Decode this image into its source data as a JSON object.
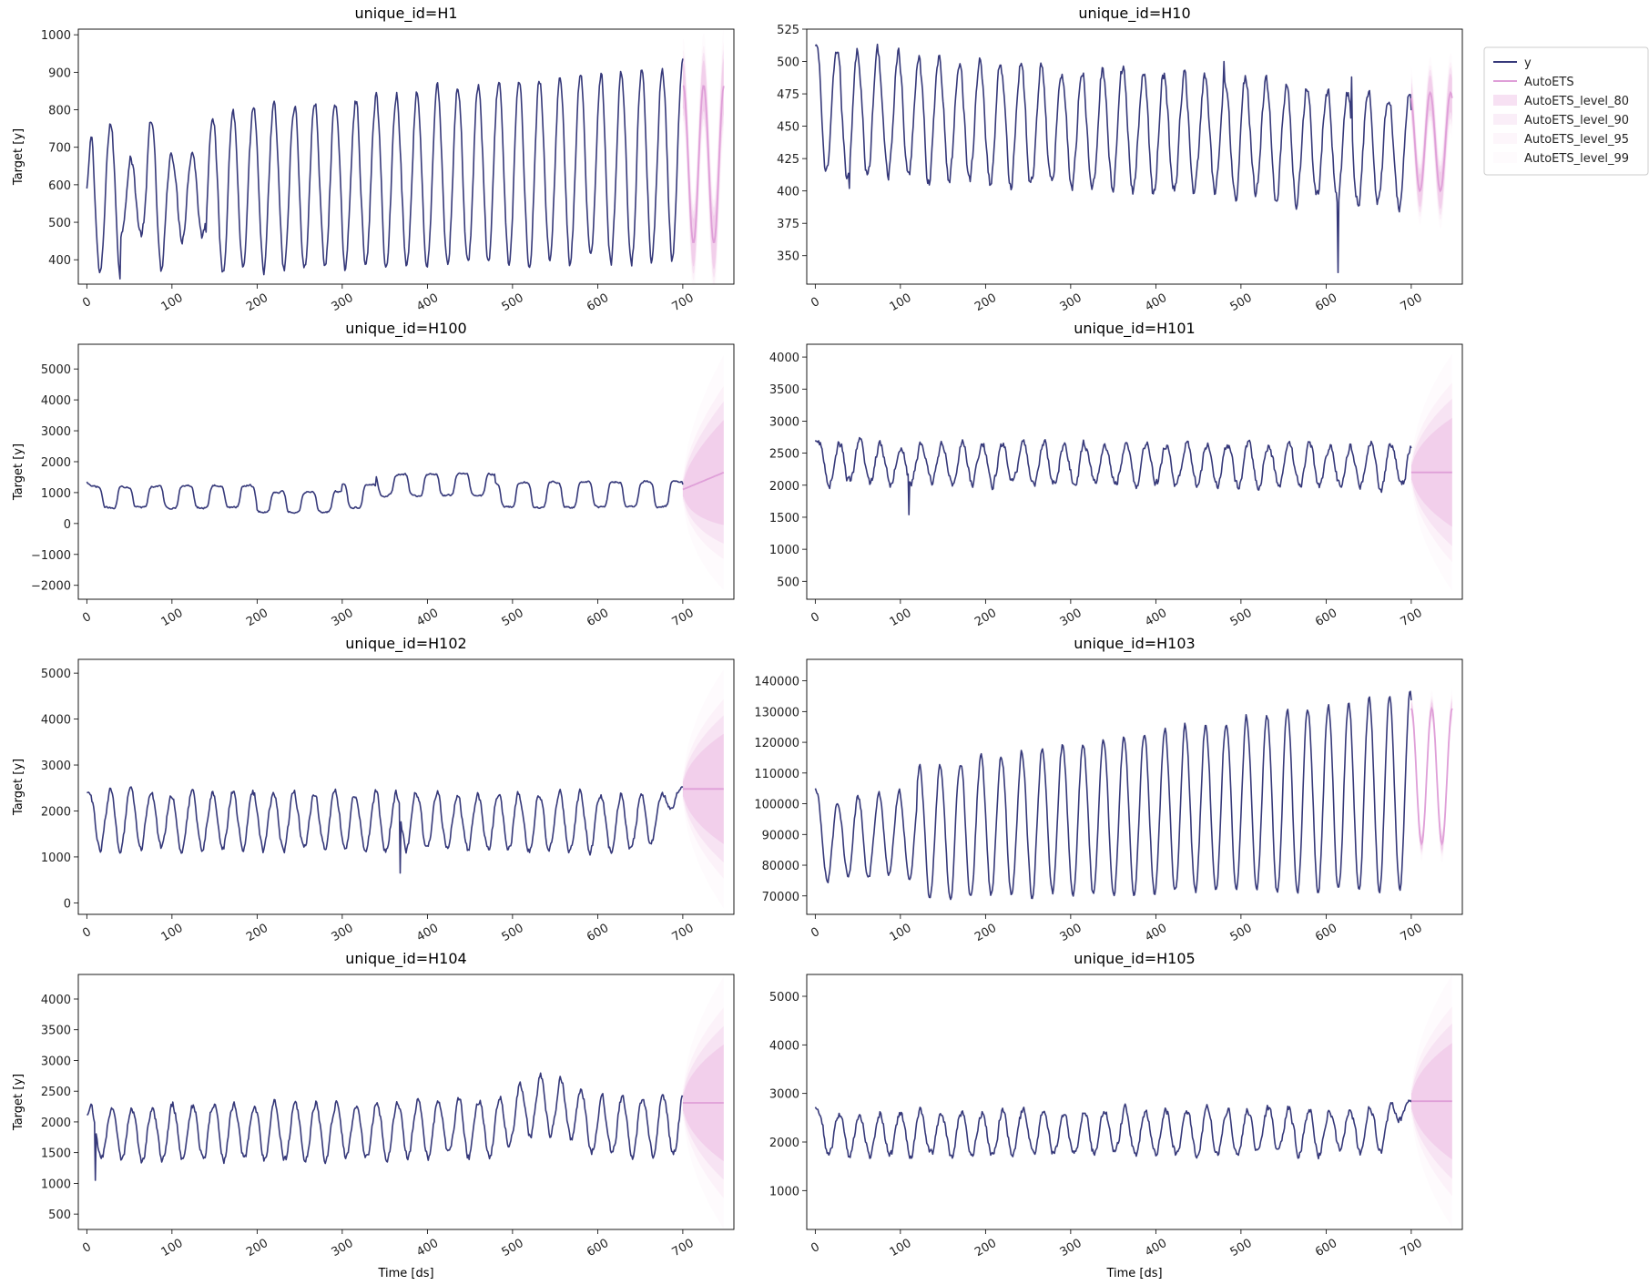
{
  "style": {
    "history_color": "#36397a",
    "forecast_color": "#df9fd8",
    "band_color": "#e7a8dc"
  },
  "legend": {
    "entries": [
      "y",
      "AutoETS",
      "AutoETS_level_80",
      "AutoETS_level_90",
      "AutoETS_level_95",
      "AutoETS_level_99"
    ]
  },
  "chart_data": [
    {
      "type": "line",
      "title": "unique_id=H1",
      "xlabel": "",
      "ylabel": "Target [y]",
      "xlim": [
        -10,
        760
      ],
      "ylim": [
        335,
        1015
      ],
      "xticks": [
        "0",
        "100",
        "200",
        "300",
        "400",
        "500",
        "600",
        "700"
      ],
      "yticks": [
        "400",
        "500",
        "600",
        "700",
        "800",
        "900",
        "1000"
      ],
      "history": {
        "pattern": "cycle",
        "start": 590,
        "base0": 560,
        "base1": 660,
        "amp0": 200,
        "amp1": 260,
        "period": 24,
        "noise": 18,
        "phase": 0.6,
        "disturb": [
          [
            40,
            70,
            0.5
          ],
          [
            95,
            140,
            0.55
          ]
        ]
      },
      "forecast": {
        "type": "seasonal",
        "mean": 655,
        "amp": 210,
        "period": 24,
        "phase": 0.4,
        "bands": [
          75,
          98,
          118,
          155
        ],
        "grow": 0.2
      }
    },
    {
      "type": "line",
      "title": "unique_id=H10",
      "xlabel": "",
      "ylabel": "",
      "xlim": [
        -10,
        760
      ],
      "ylim": [
        328,
        525
      ],
      "xticks": [
        "0",
        "100",
        "200",
        "300",
        "400",
        "500",
        "600",
        "700"
      ],
      "yticks": [
        "350",
        "375",
        "400",
        "425",
        "450",
        "475",
        "500",
        "525"
      ],
      "history": {
        "pattern": "cycle",
        "start": 512,
        "base0": 462,
        "base1": 432,
        "amp0": 50,
        "amp1": 42,
        "period": 24,
        "noise": 7,
        "phase": 1.2,
        "spikes": [
          [
            614,
            337
          ],
          [
            480,
            500
          ],
          [
            40,
            402
          ],
          [
            630,
            488
          ]
        ]
      },
      "forecast": {
        "type": "seasonal",
        "mean": 438,
        "amp": 38,
        "period": 24,
        "phase": 1.0,
        "bands": [
          15,
          20,
          24,
          31
        ],
        "grow": 0.2
      }
    },
    {
      "type": "line",
      "title": "unique_id=H100",
      "xlabel": "",
      "ylabel": "Target [y]",
      "xlim": [
        -10,
        760
      ],
      "ylim": [
        -2450,
        5800
      ],
      "xticks": [
        "0",
        "100",
        "200",
        "300",
        "400",
        "500",
        "600",
        "700"
      ],
      "yticks": [
        "−2000",
        "−1000",
        "0",
        "1000",
        "2000",
        "3000",
        "4000",
        "5000"
      ],
      "history": {
        "pattern": "square",
        "start": 1350,
        "base0": 850,
        "base1": 950,
        "amp0": 340,
        "amp1": 420,
        "period": 36,
        "noise": 40,
        "phase": 0.0,
        "seg": [
          [
            200,
            300,
            700
          ],
          [
            340,
            480,
            1250
          ]
        ]
      },
      "forecast": {
        "type": "linear",
        "start": 1100,
        "end": 1650,
        "bands": [
          1700,
          2300,
          2800,
          3800
        ],
        "grow": 1.0
      }
    },
    {
      "type": "line",
      "title": "unique_id=H101",
      "xlabel": "",
      "ylabel": "",
      "xlim": [
        -10,
        760
      ],
      "ylim": [
        220,
        4200
      ],
      "xticks": [
        "0",
        "100",
        "200",
        "300",
        "400",
        "500",
        "600",
        "700"
      ],
      "yticks": [
        "500",
        "1000",
        "1500",
        "2000",
        "2500",
        "3000",
        "3500",
        "4000"
      ],
      "history": {
        "pattern": "cycle",
        "start": 2700,
        "base0": 2350,
        "base1": 2300,
        "amp0": 300,
        "amp1": 330,
        "period": 24,
        "noise": 90,
        "phase": 0.4,
        "spikes": [
          [
            110,
            1540
          ]
        ]
      },
      "forecast": {
        "type": "flat",
        "value": 2200,
        "bands": [
          850,
          1150,
          1400,
          1850
        ],
        "grow": 1.0
      }
    },
    {
      "type": "line",
      "title": "unique_id=H102",
      "xlabel": "",
      "ylabel": "Target [y]",
      "xlim": [
        -10,
        760
      ],
      "ylim": [
        -250,
        5300
      ],
      "xticks": [
        "0",
        "100",
        "200",
        "300",
        "400",
        "500",
        "600",
        "700"
      ],
      "yticks": [
        "0",
        "1000",
        "2000",
        "3000",
        "4000",
        "5000"
      ],
      "history": {
        "pattern": "cycle",
        "start": 2400,
        "base0": 1800,
        "base1": 1750,
        "amp0": 620,
        "amp1": 620,
        "period": 24,
        "noise": 110,
        "phase": 0.7,
        "spikes": [
          [
            368,
            650
          ]
        ],
        "endrise": [
          660,
          700,
          2500
        ]
      },
      "forecast": {
        "type": "flat",
        "value": 2480,
        "bands": [
          1200,
          1600,
          1950,
          2600
        ],
        "grow": 1.0
      }
    },
    {
      "type": "line",
      "title": "unique_id=H103",
      "xlabel": "",
      "ylabel": "",
      "xlim": [
        -10,
        760
      ],
      "ylim": [
        64000,
        147000
      ],
      "xticks": [
        "0",
        "100",
        "200",
        "300",
        "400",
        "500",
        "600",
        "700"
      ],
      "yticks": [
        "70000",
        "80000",
        "90000",
        "100000",
        "110000",
        "120000",
        "130000",
        "140000"
      ],
      "history": {
        "pattern": "cycle",
        "start": 105000,
        "base0": 88000,
        "base1": 104000,
        "amp0": 19000,
        "amp1": 32000,
        "period": 24,
        "noise": 1400,
        "phase": 0.9,
        "disturb": [
          [
            0,
            120,
            0.65
          ]
        ]
      },
      "forecast": {
        "type": "seasonal",
        "mean": 109000,
        "amp": 22000,
        "period": 24,
        "phase": 0.5,
        "bands": [
          2500,
          3500,
          4500,
          6500
        ],
        "grow": 0.2
      }
    },
    {
      "type": "line",
      "title": "unique_id=H104",
      "xlabel": "Time [ds]",
      "ylabel": "Target [y]",
      "xlim": [
        -10,
        760
      ],
      "ylim": [
        250,
        4400
      ],
      "xticks": [
        "0",
        "100",
        "200",
        "300",
        "400",
        "500",
        "600",
        "700"
      ],
      "yticks": [
        "500",
        "1000",
        "1500",
        "2000",
        "2500",
        "3000",
        "3500",
        "4000"
      ],
      "history": {
        "pattern": "cycle",
        "start": 2120,
        "base0": 1800,
        "base1": 1950,
        "amp0": 440,
        "amp1": 470,
        "period": 24,
        "noise": 85,
        "phase": 0.3,
        "spikes": [
          [
            10,
            1050
          ]
        ],
        "wave": [
          [
            480,
            600,
            350
          ]
        ]
      },
      "forecast": {
        "type": "flat",
        "value": 2310,
        "bands": [
          950,
          1250,
          1550,
          2050
        ],
        "grow": 1.0
      }
    },
    {
      "type": "line",
      "title": "unique_id=H105",
      "xlabel": "Time [ds]",
      "ylabel": "",
      "xlim": [
        -10,
        760
      ],
      "ylim": [
        200,
        5450
      ],
      "xticks": [
        "0",
        "100",
        "200",
        "300",
        "400",
        "500",
        "600",
        "700"
      ],
      "yticks": [
        "1000",
        "2000",
        "3000",
        "4000",
        "5000"
      ],
      "history": {
        "pattern": "cycle",
        "start": 2720,
        "base0": 2150,
        "base1": 2250,
        "amp0": 430,
        "amp1": 460,
        "period": 24,
        "noise": 110,
        "phase": 0.5,
        "endrise": [
          665,
          700,
          2850
        ]
      },
      "forecast": {
        "type": "flat",
        "value": 2840,
        "bands": [
          1200,
          1600,
          1950,
          2600
        ],
        "grow": 1.0
      }
    }
  ]
}
